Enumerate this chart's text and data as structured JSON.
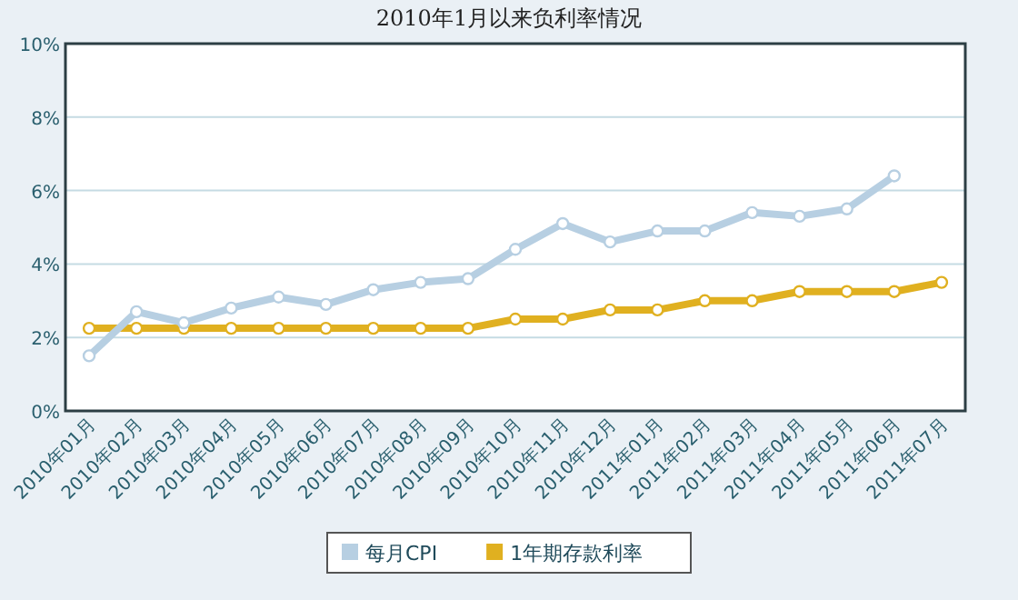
{
  "chart_data": {
    "type": "line",
    "title": "2010年1月以来负利率情况",
    "categories": [
      "2010年01月",
      "2010年02月",
      "2010年03月",
      "2010年04月",
      "2010年05月",
      "2010年06月",
      "2010年07月",
      "2010年08月",
      "2010年09月",
      "2010年10月",
      "2010年11月",
      "2010年12月",
      "2011年01月",
      "2011年02月",
      "2011年03月",
      "2011年04月",
      "2011年05月",
      "2011年06月",
      "2011年07月"
    ],
    "series": [
      {
        "name": "每月CPI",
        "color": "#b7cfe2",
        "values": [
          1.5,
          2.7,
          2.4,
          2.8,
          3.1,
          2.9,
          3.3,
          3.5,
          3.6,
          4.4,
          5.1,
          4.6,
          4.9,
          4.9,
          5.4,
          5.3,
          5.5,
          6.4,
          null
        ]
      },
      {
        "name": "1年期存款利率",
        "color": "#e0b020",
        "values": [
          2.25,
          2.25,
          2.25,
          2.25,
          2.25,
          2.25,
          2.25,
          2.25,
          2.25,
          2.5,
          2.5,
          2.75,
          2.75,
          3.0,
          3.0,
          3.25,
          3.25,
          3.25,
          3.5
        ]
      }
    ],
    "ylim": [
      0,
      10
    ],
    "yticks": [
      {
        "value": 0,
        "label": "0%"
      },
      {
        "value": 2,
        "label": "2%"
      },
      {
        "value": 4,
        "label": "4%"
      },
      {
        "value": 6,
        "label": "6%"
      },
      {
        "value": 8,
        "label": "8%"
      },
      {
        "value": 10,
        "label": "10%"
      }
    ],
    "grid": "y",
    "legend": "bottom",
    "marker": "circle",
    "line_style": "solid"
  }
}
